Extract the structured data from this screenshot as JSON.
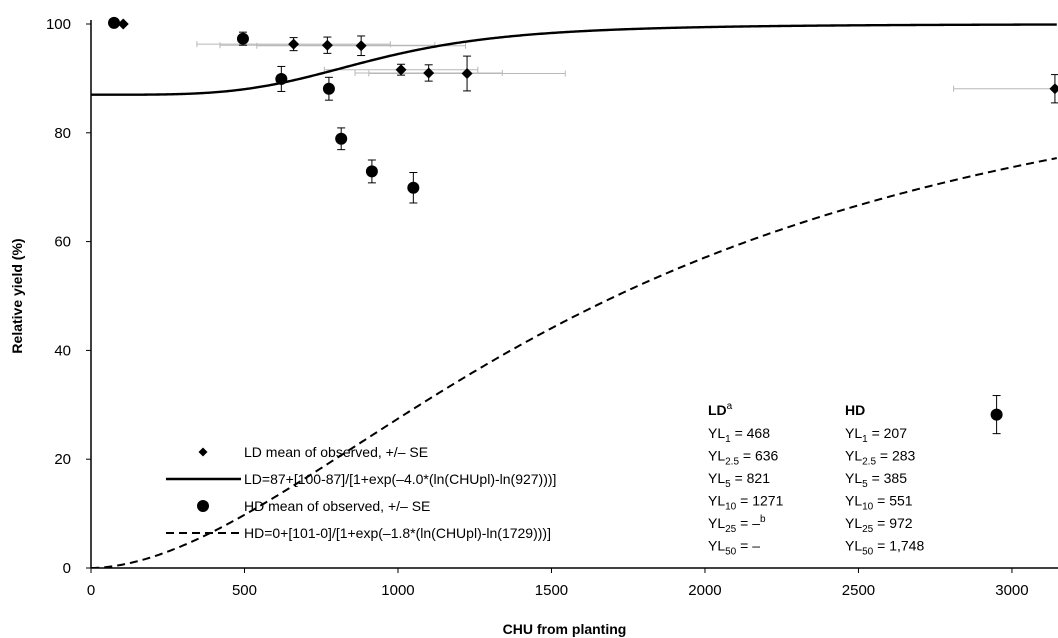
{
  "chart_data": {
    "type": "scatter",
    "title": "",
    "xlabel": "CHU from planting",
    "ylabel": "Relative yield (%)",
    "xlim": [
      0,
      3150
    ],
    "ylim": [
      0,
      100
    ],
    "x_ticks": [
      "0",
      "500",
      "1000",
      "1500",
      "2000",
      "2500",
      "3000"
    ],
    "y_ticks": [
      "0",
      "20",
      "40",
      "60",
      "80",
      "100"
    ],
    "grid": false,
    "legend_position": "bottom-left",
    "series": [
      {
        "name": "LD mean of observed, +/– SE",
        "kind": "points",
        "marker": "diamond",
        "points": [
          {
            "x": 105,
            "y": 100,
            "yerr": 0,
            "xerr": 0
          },
          {
            "x": 660,
            "y": 96.3,
            "yerr": 1.2,
            "xerr": 315
          },
          {
            "x": 770,
            "y": 96.1,
            "yerr": 1.5,
            "xerr": 350
          },
          {
            "x": 880,
            "y": 96.0,
            "yerr": 1.8,
            "xerr": 340
          },
          {
            "x": 1010,
            "y": 91.6,
            "yerr": 1.0,
            "xerr": 250
          },
          {
            "x": 1100,
            "y": 91.0,
            "yerr": 1.5,
            "xerr": 240
          },
          {
            "x": 1225,
            "y": 90.9,
            "yerr": 3.2,
            "xerr": 320
          },
          {
            "x": 3140,
            "y": 88.1,
            "yerr": 2.6,
            "xerr": 330
          }
        ]
      },
      {
        "name": "LD=87+[100-87]/[1+exp(–4.0*(ln(CHUpl)-ln(927)))]",
        "kind": "curve",
        "dash": "solid",
        "params": {
          "c": 87,
          "d": 100,
          "b": 4.0,
          "e": 927
        }
      },
      {
        "name": "HD mean of observed, +/– SE",
        "kind": "points",
        "marker": "circle",
        "points": [
          {
            "x": 75,
            "y": 100.2,
            "yerr": 0
          },
          {
            "x": 495,
            "y": 97.3,
            "yerr": 1.2
          },
          {
            "x": 620,
            "y": 89.9,
            "yerr": 2.3
          },
          {
            "x": 775,
            "y": 88.1,
            "yerr": 2.1
          },
          {
            "x": 815,
            "y": 78.9,
            "yerr": 2.0
          },
          {
            "x": 915,
            "y": 72.9,
            "yerr": 2.1
          },
          {
            "x": 1050,
            "y": 69.9,
            "yerr": 2.8
          },
          {
            "x": 2950,
            "y": 28.2,
            "yerr": 3.5
          }
        ]
      },
      {
        "name": "HD=0+[101-0]/[1+exp(–1.8*(ln(CHUpl)-ln(1729)))]",
        "kind": "curve",
        "dash": "dashed",
        "params": {
          "c": 0,
          "d": 101,
          "b": 1.8,
          "e": 1729
        }
      }
    ],
    "yl_table": {
      "ld_header": "LD",
      "ld_header_sup": "a",
      "hd_header": "HD",
      "ld_rows": [
        {
          "pre": "YL",
          "sub": "1",
          "post": " = 468",
          "sup": ""
        },
        {
          "pre": "YL",
          "sub": "2.5",
          "post": " = 636",
          "sup": ""
        },
        {
          "pre": "YL",
          "sub": "5",
          "post": " = 821",
          "sup": ""
        },
        {
          "pre": "YL",
          "sub": "10",
          "post": " = 1271",
          "sup": ""
        },
        {
          "pre": "YL",
          "sub": "25",
          "post": " = –",
          "sup": "b"
        },
        {
          "pre": "YL",
          "sub": "50",
          "post": " = –",
          "sup": ""
        }
      ],
      "hd_rows": [
        {
          "pre": "YL",
          "sub": "1",
          "post": " = 207",
          "sup": ""
        },
        {
          "pre": "YL",
          "sub": "2.5",
          "post": " = 283",
          "sup": ""
        },
        {
          "pre": "YL",
          "sub": "5",
          "post": " = 385",
          "sup": ""
        },
        {
          "pre": "YL",
          "sub": "10",
          "post": " = 551",
          "sup": ""
        },
        {
          "pre": "YL",
          "sub": "25",
          "post": " = 972",
          "sup": ""
        },
        {
          "pre": "YL",
          "sub": "50",
          "post": " = 1,748",
          "sup": ""
        }
      ]
    }
  }
}
